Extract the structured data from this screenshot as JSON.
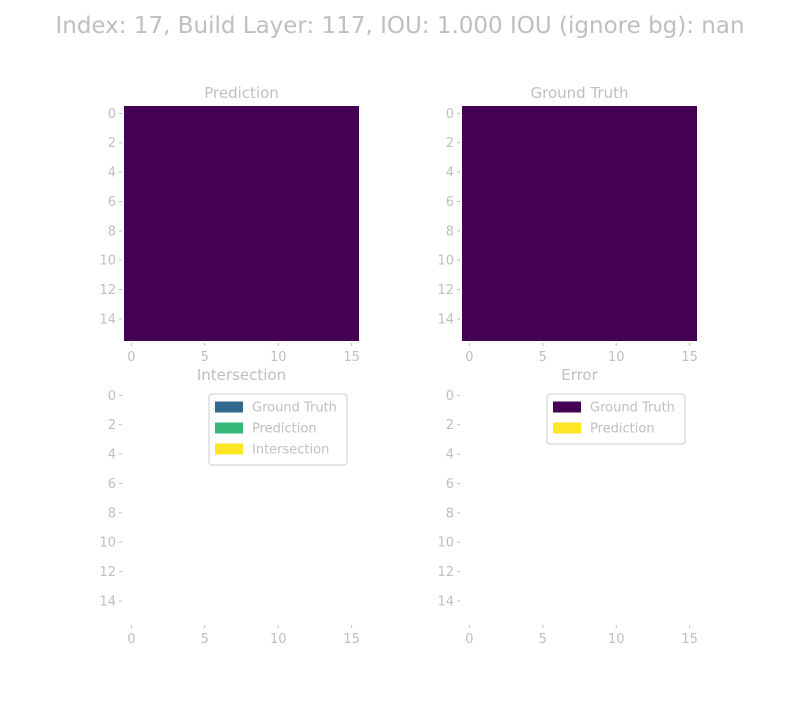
{
  "figure": {
    "suptitle": "Index: 17, Build Layer: 117, IOU: 1.000 IOU (ignore bg): nan"
  },
  "colors": {
    "text": "#bfbfbf",
    "tick": "#bfbfbf",
    "viridis_dark": "#440154",
    "viridis_blue": "#31688e",
    "viridis_green": "#35b779",
    "viridis_yellow": "#fde725",
    "legend_border": "#cccccc"
  },
  "chart_data": [
    {
      "type": "heatmap",
      "title": "Prediction",
      "grid_size": 16,
      "fill": "uniform",
      "fill_color": "#440154",
      "x_ticks": [
        0,
        5,
        10,
        15
      ],
      "y_ticks": [
        0,
        2,
        4,
        6,
        8,
        10,
        12,
        14
      ],
      "xlim": [
        -0.5,
        15.5
      ],
      "ylim": [
        15.5,
        -0.5
      ],
      "legend": []
    },
    {
      "type": "heatmap",
      "title": "Ground Truth",
      "grid_size": 16,
      "fill": "uniform",
      "fill_color": "#440154",
      "x_ticks": [
        0,
        5,
        10,
        15
      ],
      "y_ticks": [
        0,
        2,
        4,
        6,
        8,
        10,
        12,
        14
      ],
      "xlim": [
        -0.5,
        15.5
      ],
      "ylim": [
        15.5,
        -0.5
      ],
      "legend": []
    },
    {
      "type": "heatmap",
      "title": "Intersection",
      "grid_size": 16,
      "fill": "empty",
      "fill_color": "",
      "x_ticks": [
        0,
        5,
        10,
        15
      ],
      "y_ticks": [
        0,
        2,
        4,
        6,
        8,
        10,
        12,
        14
      ],
      "xlim": [
        -0.5,
        15.5
      ],
      "ylim": [
        15.5,
        -0.5
      ],
      "legend_placement": "top-right",
      "legend": [
        {
          "label": "Ground Truth",
          "color": "#31688e"
        },
        {
          "label": "Prediction",
          "color": "#35b779"
        },
        {
          "label": "Intersection",
          "color": "#fde725"
        }
      ]
    },
    {
      "type": "heatmap",
      "title": "Error",
      "grid_size": 16,
      "fill": "empty",
      "fill_color": "",
      "x_ticks": [
        0,
        5,
        10,
        15
      ],
      "y_ticks": [
        0,
        2,
        4,
        6,
        8,
        10,
        12,
        14
      ],
      "xlim": [
        -0.5,
        15.5
      ],
      "ylim": [
        15.5,
        -0.5
      ],
      "legend_placement": "top-right",
      "legend": [
        {
          "label": "Ground Truth",
          "color": "#440154"
        },
        {
          "label": "Prediction",
          "color": "#fde725"
        }
      ]
    }
  ]
}
